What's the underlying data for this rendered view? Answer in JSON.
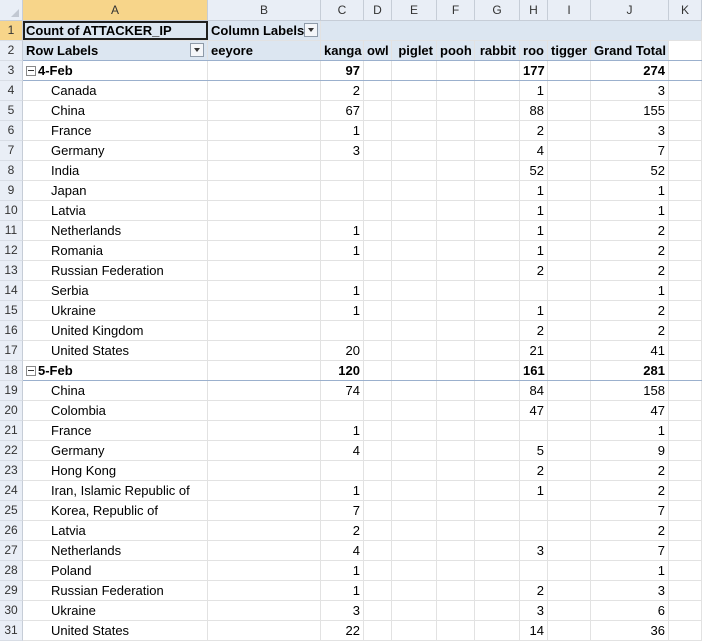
{
  "columns": [
    "A",
    "B",
    "C",
    "D",
    "E",
    "F",
    "G",
    "H",
    "I",
    "J",
    "K"
  ],
  "pivot": {
    "title": "Count of ATTACKER_IP",
    "column_labels": "Column Labels",
    "row_labels": "Row Labels",
    "series": [
      "eeyore",
      "kanga",
      "owl",
      "piglet",
      "pooh",
      "rabbit",
      "roo",
      "tigger",
      "Grand Total"
    ]
  },
  "rows": [
    {
      "num": "3",
      "type": "group",
      "label": "4-Feb",
      "kanga": "97",
      "roo": "177",
      "total": "274"
    },
    {
      "num": "4",
      "type": "item",
      "label": "Canada",
      "kanga": "2",
      "roo": "1",
      "total": "3"
    },
    {
      "num": "5",
      "type": "item",
      "label": "China",
      "kanga": "67",
      "roo": "88",
      "total": "155"
    },
    {
      "num": "6",
      "type": "item",
      "label": "France",
      "kanga": "1",
      "roo": "2",
      "total": "3"
    },
    {
      "num": "7",
      "type": "item",
      "label": "Germany",
      "kanga": "3",
      "roo": "4",
      "total": "7"
    },
    {
      "num": "8",
      "type": "item",
      "label": "India",
      "kanga": "",
      "roo": "52",
      "total": "52"
    },
    {
      "num": "9",
      "type": "item",
      "label": "Japan",
      "kanga": "",
      "roo": "1",
      "total": "1"
    },
    {
      "num": "10",
      "type": "item",
      "label": "Latvia",
      "kanga": "",
      "roo": "1",
      "total": "1"
    },
    {
      "num": "11",
      "type": "item",
      "label": "Netherlands",
      "kanga": "1",
      "roo": "1",
      "total": "2"
    },
    {
      "num": "12",
      "type": "item",
      "label": "Romania",
      "kanga": "1",
      "roo": "1",
      "total": "2"
    },
    {
      "num": "13",
      "type": "item",
      "label": "Russian Federation",
      "kanga": "",
      "roo": "2",
      "total": "2"
    },
    {
      "num": "14",
      "type": "item",
      "label": "Serbia",
      "kanga": "1",
      "roo": "",
      "total": "1"
    },
    {
      "num": "15",
      "type": "item",
      "label": "Ukraine",
      "kanga": "1",
      "roo": "1",
      "total": "2"
    },
    {
      "num": "16",
      "type": "item",
      "label": "United Kingdom",
      "kanga": "",
      "roo": "2",
      "total": "2"
    },
    {
      "num": "17",
      "type": "item",
      "label": "United States",
      "kanga": "20",
      "roo": "21",
      "total": "41"
    },
    {
      "num": "18",
      "type": "group",
      "label": "5-Feb",
      "kanga": "120",
      "roo": "161",
      "total": "281"
    },
    {
      "num": "19",
      "type": "item",
      "label": "China",
      "kanga": "74",
      "roo": "84",
      "total": "158"
    },
    {
      "num": "20",
      "type": "item",
      "label": "Colombia",
      "kanga": "",
      "roo": "47",
      "total": "47"
    },
    {
      "num": "21",
      "type": "item",
      "label": "France",
      "kanga": "1",
      "roo": "",
      "total": "1"
    },
    {
      "num": "22",
      "type": "item",
      "label": "Germany",
      "kanga": "4",
      "roo": "5",
      "total": "9"
    },
    {
      "num": "23",
      "type": "item",
      "label": "Hong Kong",
      "kanga": "",
      "roo": "2",
      "total": "2"
    },
    {
      "num": "24",
      "type": "item",
      "label": "Iran, Islamic Republic of",
      "kanga": "1",
      "roo": "1",
      "total": "2"
    },
    {
      "num": "25",
      "type": "item",
      "label": "Korea, Republic of",
      "kanga": "7",
      "roo": "",
      "total": "7"
    },
    {
      "num": "26",
      "type": "item",
      "label": "Latvia",
      "kanga": "2",
      "roo": "",
      "total": "2"
    },
    {
      "num": "27",
      "type": "item",
      "label": "Netherlands",
      "kanga": "4",
      "roo": "3",
      "total": "7"
    },
    {
      "num": "28",
      "type": "item",
      "label": "Poland",
      "kanga": "1",
      "roo": "",
      "total": "1"
    },
    {
      "num": "29",
      "type": "item",
      "label": "Russian Federation",
      "kanga": "1",
      "roo": "2",
      "total": "3"
    },
    {
      "num": "30",
      "type": "item",
      "label": "Ukraine",
      "kanga": "3",
      "roo": "3",
      "total": "6"
    },
    {
      "num": "31",
      "type": "item",
      "label": "United States",
      "kanga": "22",
      "roo": "14",
      "total": "36"
    }
  ]
}
